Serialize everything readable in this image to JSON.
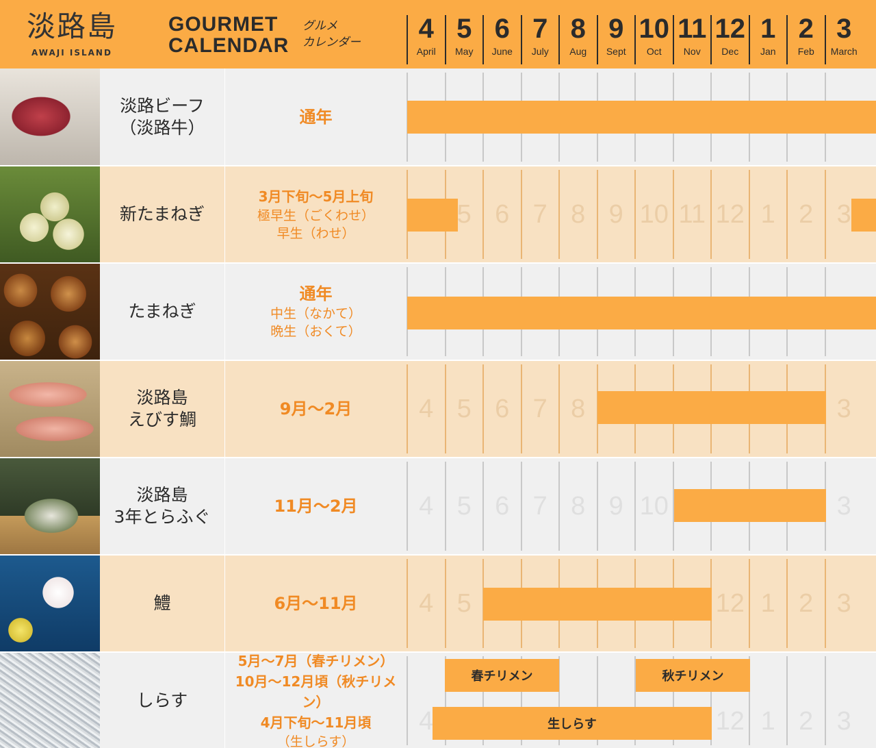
{
  "header": {
    "logo_kanji": "淡路島",
    "logo_en": "AWAJI ISLAND",
    "title_line1": "GOURMET",
    "title_line2": "CALENDAR",
    "title_ja_line1": "グルメ",
    "title_ja_line2": "カレンダー",
    "background": "#fbab45"
  },
  "months": [
    {
      "num": "4",
      "en": "April"
    },
    {
      "num": "5",
      "en": "May"
    },
    {
      "num": "6",
      "en": "June"
    },
    {
      "num": "7",
      "en": "July"
    },
    {
      "num": "8",
      "en": "Aug"
    },
    {
      "num": "9",
      "en": "Sept"
    },
    {
      "num": "10",
      "en": "Oct"
    },
    {
      "num": "11",
      "en": "Nov"
    },
    {
      "num": "12",
      "en": "Dec"
    },
    {
      "num": "1",
      "en": "Jan"
    },
    {
      "num": "2",
      "en": "Feb"
    },
    {
      "num": "3",
      "en": "March"
    }
  ],
  "accent_color": "#fbab45",
  "season_text_color": "#f08a24",
  "rows": [
    {
      "name_lines": [
        "淡路ビーフ",
        "（淡路牛）"
      ],
      "season_lines": [
        "通年"
      ],
      "photo": "beef"
    },
    {
      "name_lines": [
        "新たまねぎ"
      ],
      "season_lines": [
        "3月下旬～5月上旬",
        "極早生（ごくわせ）",
        "早生（わせ）"
      ],
      "photo": "new-onion"
    },
    {
      "name_lines": [
        "たまねぎ"
      ],
      "season_lines": [
        "通年",
        "中生（なかて）",
        "晩生（おくて）"
      ],
      "photo": "onion"
    },
    {
      "name_lines": [
        "淡路島",
        "えびす鯛"
      ],
      "season_lines": [
        "9月～2月"
      ],
      "photo": "sea-bream"
    },
    {
      "name_lines": [
        "淡路島",
        "3年とらふぐ"
      ],
      "season_lines": [
        "11月～2月"
      ],
      "photo": "pufferfish"
    },
    {
      "name_lines": [
        "鱧"
      ],
      "season_lines": [
        "6月～11月"
      ],
      "photo": "hamo"
    },
    {
      "name_lines": [
        "しらす"
      ],
      "season_lines": [
        "5月～7月（春チリメン）",
        "10月～12月頃（秋チリメン）",
        "4月下旬～11月頃",
        "（生しらす）"
      ],
      "photo": "shirasu",
      "bar_labels": [
        "春チリメン",
        "秋チリメン",
        "生しらす"
      ]
    }
  ]
}
